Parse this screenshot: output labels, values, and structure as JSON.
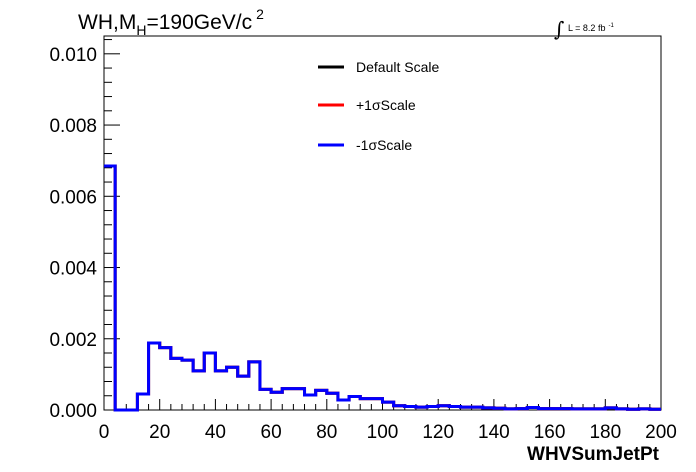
{
  "chart_data": {
    "type": "line",
    "title": {
      "prefix": "WH,M",
      "subscript": "H",
      "suffix": "=190GeV/c",
      "superscript": "2"
    },
    "lumi": {
      "symbol": "∫",
      "text": "L = 8.2 fb",
      "superscript": "-1"
    },
    "xlabel": "WHVSumJetPt",
    "ylabel": "",
    "xlim": [
      0,
      200
    ],
    "ylim": [
      0,
      0.0105
    ],
    "x_ticks": [
      {
        "value": 0,
        "label": "0"
      },
      {
        "value": 20,
        "label": "20"
      },
      {
        "value": 40,
        "label": "40"
      },
      {
        "value": 60,
        "label": "60"
      },
      {
        "value": 80,
        "label": "80"
      },
      {
        "value": 100,
        "label": "100"
      },
      {
        "value": 120,
        "label": "120"
      },
      {
        "value": 140,
        "label": "140"
      },
      {
        "value": 160,
        "label": "160"
      },
      {
        "value": 180,
        "label": "180"
      },
      {
        "value": 200,
        "label": "200"
      }
    ],
    "y_ticks": [
      {
        "value": 0,
        "label": "0.000"
      },
      {
        "value": 0.002,
        "label": "0.002"
      },
      {
        "value": 0.004,
        "label": "0.004"
      },
      {
        "value": 0.006,
        "label": "0.006"
      },
      {
        "value": 0.008,
        "label": "0.008"
      },
      {
        "value": 0.01,
        "label": "0.010"
      }
    ],
    "grid": false,
    "legend_position": "top-center",
    "bin_width": 4,
    "bin_edges_start": 0,
    "series": [
      {
        "name": "Default Scale",
        "color": "#000000"
      },
      {
        "name": "+1σScale",
        "color": "#ff0000"
      },
      {
        "name": "-1σScale",
        "color": "#0000ff"
      }
    ],
    "values": [
      0.00685,
      0.0,
      0.0,
      0.00045,
      0.00188,
      0.00175,
      0.00145,
      0.0014,
      0.0011,
      0.0016,
      0.0011,
      0.0012,
      0.00095,
      0.00135,
      0.00058,
      0.0005,
      0.0006,
      0.0006,
      0.00042,
      0.00055,
      0.00047,
      0.00028,
      0.00038,
      0.00032,
      0.00032,
      0.00022,
      0.00012,
      0.0001,
      8e-05,
      0.0001,
      0.00012,
      0.0001,
      8e-05,
      8e-05,
      6e-05,
      5e-05,
      3e-05,
      4e-05,
      7e-05,
      4e-05,
      4e-05,
      4e-05,
      3e-05,
      3e-05,
      3e-05,
      6e-05,
      3e-05,
      2e-05,
      3e-05,
      2e-05
    ],
    "colors": {
      "frame": "#000000",
      "background": "#ffffff"
    }
  }
}
